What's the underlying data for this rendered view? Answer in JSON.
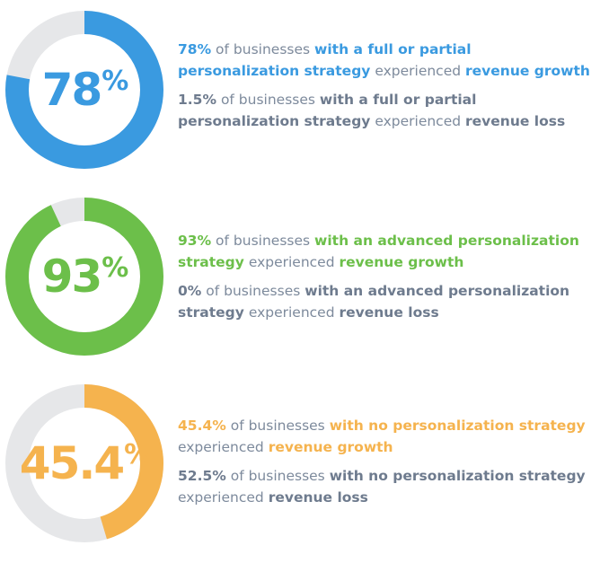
{
  "colors": {
    "blue": "#3a9ae0",
    "green": "#6cbf4a",
    "orange": "#f5b34e",
    "track": "#e6e7e9"
  },
  "chart_data": [
    {
      "type": "pie",
      "variant": "donut",
      "center_value": "78",
      "center_unit": "%",
      "values": [
        78,
        22
      ],
      "color_key": "blue",
      "stats": [
        {
          "value": "78%",
          "pre": "of businesses",
          "group": "with a full or partial personalization strategy",
          "verb": "experienced",
          "outcome": "revenue growth",
          "highlight": true
        },
        {
          "value": "1.5%",
          "pre": "of businesses",
          "group": "with a full or partial personalization strategy",
          "verb": "experienced",
          "outcome": "revenue loss",
          "highlight": false
        }
      ]
    },
    {
      "type": "pie",
      "variant": "donut",
      "center_value": "93",
      "center_unit": "%",
      "values": [
        93,
        7
      ],
      "color_key": "green",
      "stats": [
        {
          "value": "93%",
          "pre": "of businesses",
          "group": "with an advanced personalization strategy",
          "verb": "experienced",
          "outcome": "revenue growth",
          "highlight": true
        },
        {
          "value": "0%",
          "pre": "of businesses",
          "group": "with an advanced personalization strategy",
          "verb": "experienced",
          "outcome": "revenue loss",
          "highlight": false
        }
      ]
    },
    {
      "type": "pie",
      "variant": "donut",
      "center_value": "45.4",
      "center_unit": "%",
      "values": [
        45.4,
        54.6
      ],
      "color_key": "orange",
      "stats": [
        {
          "value": "45.4%",
          "pre": "of businesses",
          "group": "with no personalization strategy",
          "verb": "experienced",
          "outcome": "revenue growth",
          "highlight": true
        },
        {
          "value": "52.5%",
          "pre": "of businesses",
          "group": "with no personalization strategy",
          "verb": "experienced",
          "outcome": "revenue loss",
          "highlight": false
        }
      ]
    }
  ]
}
